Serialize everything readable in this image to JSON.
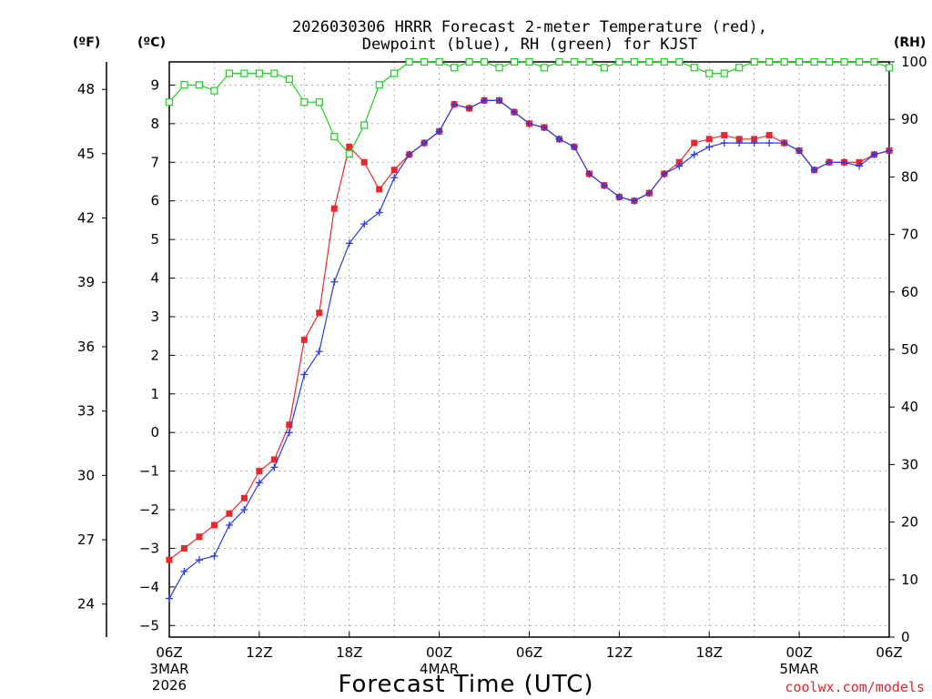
{
  "chart_data": {
    "type": "line",
    "title_line1": "2026030306 HRRR Forecast 2-meter Temperature (red),",
    "title_line2": "Dewpoint (blue), RH (green) for KJST",
    "xlabel": "Forecast Time (UTC)",
    "credit": "coolwx.com/models",
    "units": {
      "fahrenheit": "(ºF)",
      "celsius": "(ºC)",
      "rh": "(RH)"
    },
    "x_range_hours": [
      0,
      48
    ],
    "y_celsius_range": [
      -5.3,
      9.6
    ],
    "y_rh_range": [
      0,
      100
    ],
    "x_ticks": [
      {
        "hour": 0,
        "label": "06Z",
        "date": "3MAR",
        "year": "2026"
      },
      {
        "hour": 6,
        "label": "12Z"
      },
      {
        "hour": 12,
        "label": "18Z"
      },
      {
        "hour": 18,
        "label": "00Z",
        "date": "4MAR"
      },
      {
        "hour": 24,
        "label": "06Z"
      },
      {
        "hour": 30,
        "label": "12Z"
      },
      {
        "hour": 36,
        "label": "18Z"
      },
      {
        "hour": 42,
        "label": "00Z",
        "date": "5MAR"
      },
      {
        "hour": 48,
        "label": "06Z"
      }
    ],
    "y_celsius_ticks": [
      -5,
      -4,
      -3,
      -2,
      -1,
      0,
      1,
      2,
      3,
      4,
      5,
      6,
      7,
      8,
      9
    ],
    "y_fahrenheit_ticks": [
      24,
      27,
      30,
      33,
      36,
      39,
      42,
      45,
      48
    ],
    "y_rh_ticks": [
      0,
      10,
      20,
      30,
      40,
      50,
      60,
      70,
      80,
      90,
      100
    ],
    "grid": true,
    "series": [
      {
        "name": "Temperature",
        "unit": "C",
        "color": "#e8282e",
        "marker": "square-filled",
        "values": [
          -3.3,
          -3.0,
          -2.7,
          -2.4,
          -2.1,
          -1.7,
          -1.0,
          -0.7,
          0.2,
          2.4,
          3.1,
          5.8,
          7.4,
          7.0,
          6.3,
          6.8,
          7.2,
          7.5,
          7.8,
          8.5,
          8.4,
          8.6,
          8.6,
          8.3,
          8.0,
          7.9,
          7.6,
          7.4,
          6.7,
          6.4,
          6.1,
          6.0,
          6.2,
          6.7,
          7.0,
          7.5,
          7.6,
          7.7,
          7.6,
          7.6,
          7.7,
          7.5,
          7.3,
          6.8,
          7.0,
          7.0,
          7.0,
          7.2,
          7.3
        ]
      },
      {
        "name": "Dewpoint",
        "unit": "C",
        "color": "#2a3be0",
        "marker": "plus",
        "values": [
          -4.3,
          -3.6,
          -3.3,
          -3.2,
          -2.4,
          -2.0,
          -1.3,
          -0.9,
          0.0,
          1.5,
          2.1,
          3.9,
          4.9,
          5.4,
          5.7,
          6.6,
          7.2,
          7.5,
          7.8,
          8.5,
          8.4,
          8.6,
          8.6,
          8.3,
          8.0,
          7.9,
          7.6,
          7.4,
          6.7,
          6.4,
          6.1,
          6.0,
          6.2,
          6.7,
          6.9,
          7.2,
          7.4,
          7.5,
          7.5,
          7.5,
          7.5,
          7.5,
          7.3,
          6.8,
          7.0,
          7.0,
          6.9,
          7.2,
          7.3
        ]
      },
      {
        "name": "RH",
        "unit": "%",
        "color": "#22cc22",
        "marker": "square-open",
        "values": [
          93,
          96,
          96,
          95,
          98,
          98,
          98,
          98,
          97,
          93,
          93,
          87,
          84,
          89,
          96,
          98,
          100,
          100,
          100,
          99,
          100,
          100,
          99,
          100,
          100,
          99,
          100,
          100,
          100,
          99,
          100,
          100,
          100,
          100,
          100,
          99,
          98,
          98,
          99,
          100,
          100,
          100,
          100,
          100,
          100,
          100,
          100,
          100,
          99
        ]
      }
    ]
  }
}
